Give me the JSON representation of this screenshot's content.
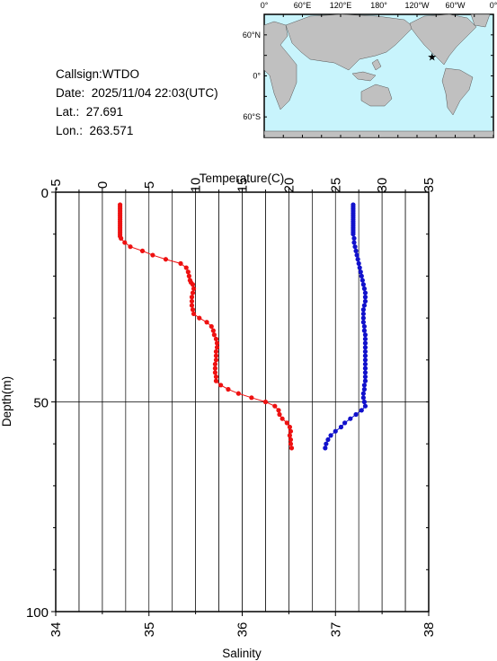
{
  "station": {
    "callsign": "Callsign:WTDO",
    "date": "Date:  2025/11/04 22:03(UTC)",
    "lat": "Lat.:  27.691",
    "lon": "Lon.:  263.571"
  },
  "map": {
    "top_labels": [
      "0°",
      "60°E",
      "120°E",
      "180°",
      "120°W",
      "60°W",
      "0°"
    ],
    "lat_labels": [
      "60°N",
      "0°",
      "60°S"
    ],
    "ocean_color": "#c8f4fc",
    "land_color": "#c0c0c0",
    "marker": {
      "lon": 263.571,
      "lat": 27.691,
      "color": "#ff0000",
      "icon": "star-icon"
    }
  },
  "chart_data": {
    "type": "scatter",
    "y_label": "Depth(m)",
    "y_ticks": [
      "0",
      "50",
      "100"
    ],
    "ylim": [
      0,
      100
    ],
    "y_inverted": true,
    "top_axis": {
      "label": "Temperature(C)",
      "ticks": [
        "-5",
        "0",
        "5",
        "10",
        "15",
        "20",
        "25",
        "30",
        "35"
      ],
      "lim": [
        -5,
        35
      ]
    },
    "bottom_axis": {
      "label": "Salinity",
      "ticks": [
        "34",
        "35",
        "36",
        "37",
        "38"
      ],
      "lim": [
        34,
        38
      ]
    },
    "grid": true,
    "series": [
      {
        "axis": "top",
        "color": "#ee1111",
        "points": [
          [
            1.9,
            3
          ],
          [
            1.9,
            3.5
          ],
          [
            1.9,
            4
          ],
          [
            1.9,
            4.5
          ],
          [
            1.9,
            5
          ],
          [
            1.9,
            5.5
          ],
          [
            1.9,
            6
          ],
          [
            1.9,
            6.5
          ],
          [
            1.9,
            7
          ],
          [
            1.9,
            7.5
          ],
          [
            1.9,
            8
          ],
          [
            1.9,
            8.5
          ],
          [
            1.9,
            9
          ],
          [
            1.9,
            9.5
          ],
          [
            1.9,
            10
          ],
          [
            1.9,
            10.5
          ],
          [
            2.0,
            11
          ],
          [
            2.4,
            12
          ],
          [
            3.0,
            13
          ],
          [
            4.3,
            14
          ],
          [
            5.4,
            15
          ],
          [
            6.8,
            16
          ],
          [
            8.4,
            17
          ],
          [
            9.0,
            18
          ],
          [
            9.2,
            19
          ],
          [
            9.3,
            20
          ],
          [
            9.4,
            21
          ],
          [
            9.5,
            21.5
          ],
          [
            9.7,
            22
          ],
          [
            9.8,
            23
          ],
          [
            9.7,
            24
          ],
          [
            9.6,
            25
          ],
          [
            9.6,
            26
          ],
          [
            9.6,
            27
          ],
          [
            9.7,
            28
          ],
          [
            9.8,
            29
          ],
          [
            10.4,
            30
          ],
          [
            11.2,
            31
          ],
          [
            11.7,
            32
          ],
          [
            11.9,
            33
          ],
          [
            12.0,
            34
          ],
          [
            12.2,
            35
          ],
          [
            12.3,
            36
          ],
          [
            12.3,
            37
          ],
          [
            12.2,
            38
          ],
          [
            12.2,
            39
          ],
          [
            12.2,
            40
          ],
          [
            12.1,
            41
          ],
          [
            12.1,
            42
          ],
          [
            12.1,
            43
          ],
          [
            12.2,
            44
          ],
          [
            12.2,
            45
          ],
          [
            12.7,
            46
          ],
          [
            13.5,
            47
          ],
          [
            14.6,
            48
          ],
          [
            16.0,
            49
          ],
          [
            17.5,
            50
          ],
          [
            18.5,
            51
          ],
          [
            18.9,
            52
          ],
          [
            19.0,
            53
          ],
          [
            19.3,
            54
          ],
          [
            19.8,
            55
          ],
          [
            20.1,
            56
          ],
          [
            20.2,
            57
          ],
          [
            20.1,
            58
          ],
          [
            20.2,
            59
          ],
          [
            20.2,
            60
          ],
          [
            20.3,
            61
          ]
        ]
      },
      {
        "axis": "bottom",
        "color": "#1111cc",
        "points": [
          [
            37.19,
            3
          ],
          [
            37.19,
            3.5
          ],
          [
            37.19,
            4
          ],
          [
            37.19,
            4.5
          ],
          [
            37.19,
            5
          ],
          [
            37.19,
            5.5
          ],
          [
            37.19,
            6
          ],
          [
            37.19,
            6.5
          ],
          [
            37.19,
            7
          ],
          [
            37.19,
            7.5
          ],
          [
            37.19,
            8
          ],
          [
            37.19,
            8.5
          ],
          [
            37.19,
            9
          ],
          [
            37.19,
            9.5
          ],
          [
            37.19,
            10
          ],
          [
            37.2,
            11
          ],
          [
            37.2,
            12
          ],
          [
            37.21,
            13
          ],
          [
            37.22,
            14
          ],
          [
            37.23,
            15
          ],
          [
            37.24,
            16
          ],
          [
            37.25,
            17
          ],
          [
            37.26,
            18
          ],
          [
            37.27,
            19
          ],
          [
            37.28,
            20
          ],
          [
            37.29,
            21
          ],
          [
            37.3,
            22
          ],
          [
            37.31,
            23
          ],
          [
            37.32,
            24
          ],
          [
            37.32,
            25
          ],
          [
            37.32,
            26
          ],
          [
            37.31,
            27
          ],
          [
            37.3,
            28
          ],
          [
            37.3,
            29
          ],
          [
            37.3,
            30
          ],
          [
            37.3,
            31
          ],
          [
            37.31,
            32
          ],
          [
            37.31,
            33
          ],
          [
            37.32,
            34
          ],
          [
            37.32,
            35
          ],
          [
            37.32,
            36
          ],
          [
            37.32,
            37
          ],
          [
            37.32,
            38
          ],
          [
            37.32,
            39
          ],
          [
            37.32,
            40
          ],
          [
            37.32,
            41
          ],
          [
            37.32,
            42
          ],
          [
            37.32,
            43
          ],
          [
            37.32,
            44
          ],
          [
            37.32,
            45
          ],
          [
            37.31,
            46
          ],
          [
            37.31,
            47
          ],
          [
            37.3,
            48
          ],
          [
            37.3,
            49
          ],
          [
            37.31,
            50
          ],
          [
            37.32,
            51
          ],
          [
            37.28,
            52
          ],
          [
            37.22,
            53
          ],
          [
            37.16,
            54
          ],
          [
            37.1,
            55
          ],
          [
            37.06,
            56
          ],
          [
            37.0,
            57
          ],
          [
            36.95,
            58
          ],
          [
            36.92,
            59
          ],
          [
            36.9,
            60
          ],
          [
            36.89,
            61
          ]
        ]
      }
    ]
  }
}
